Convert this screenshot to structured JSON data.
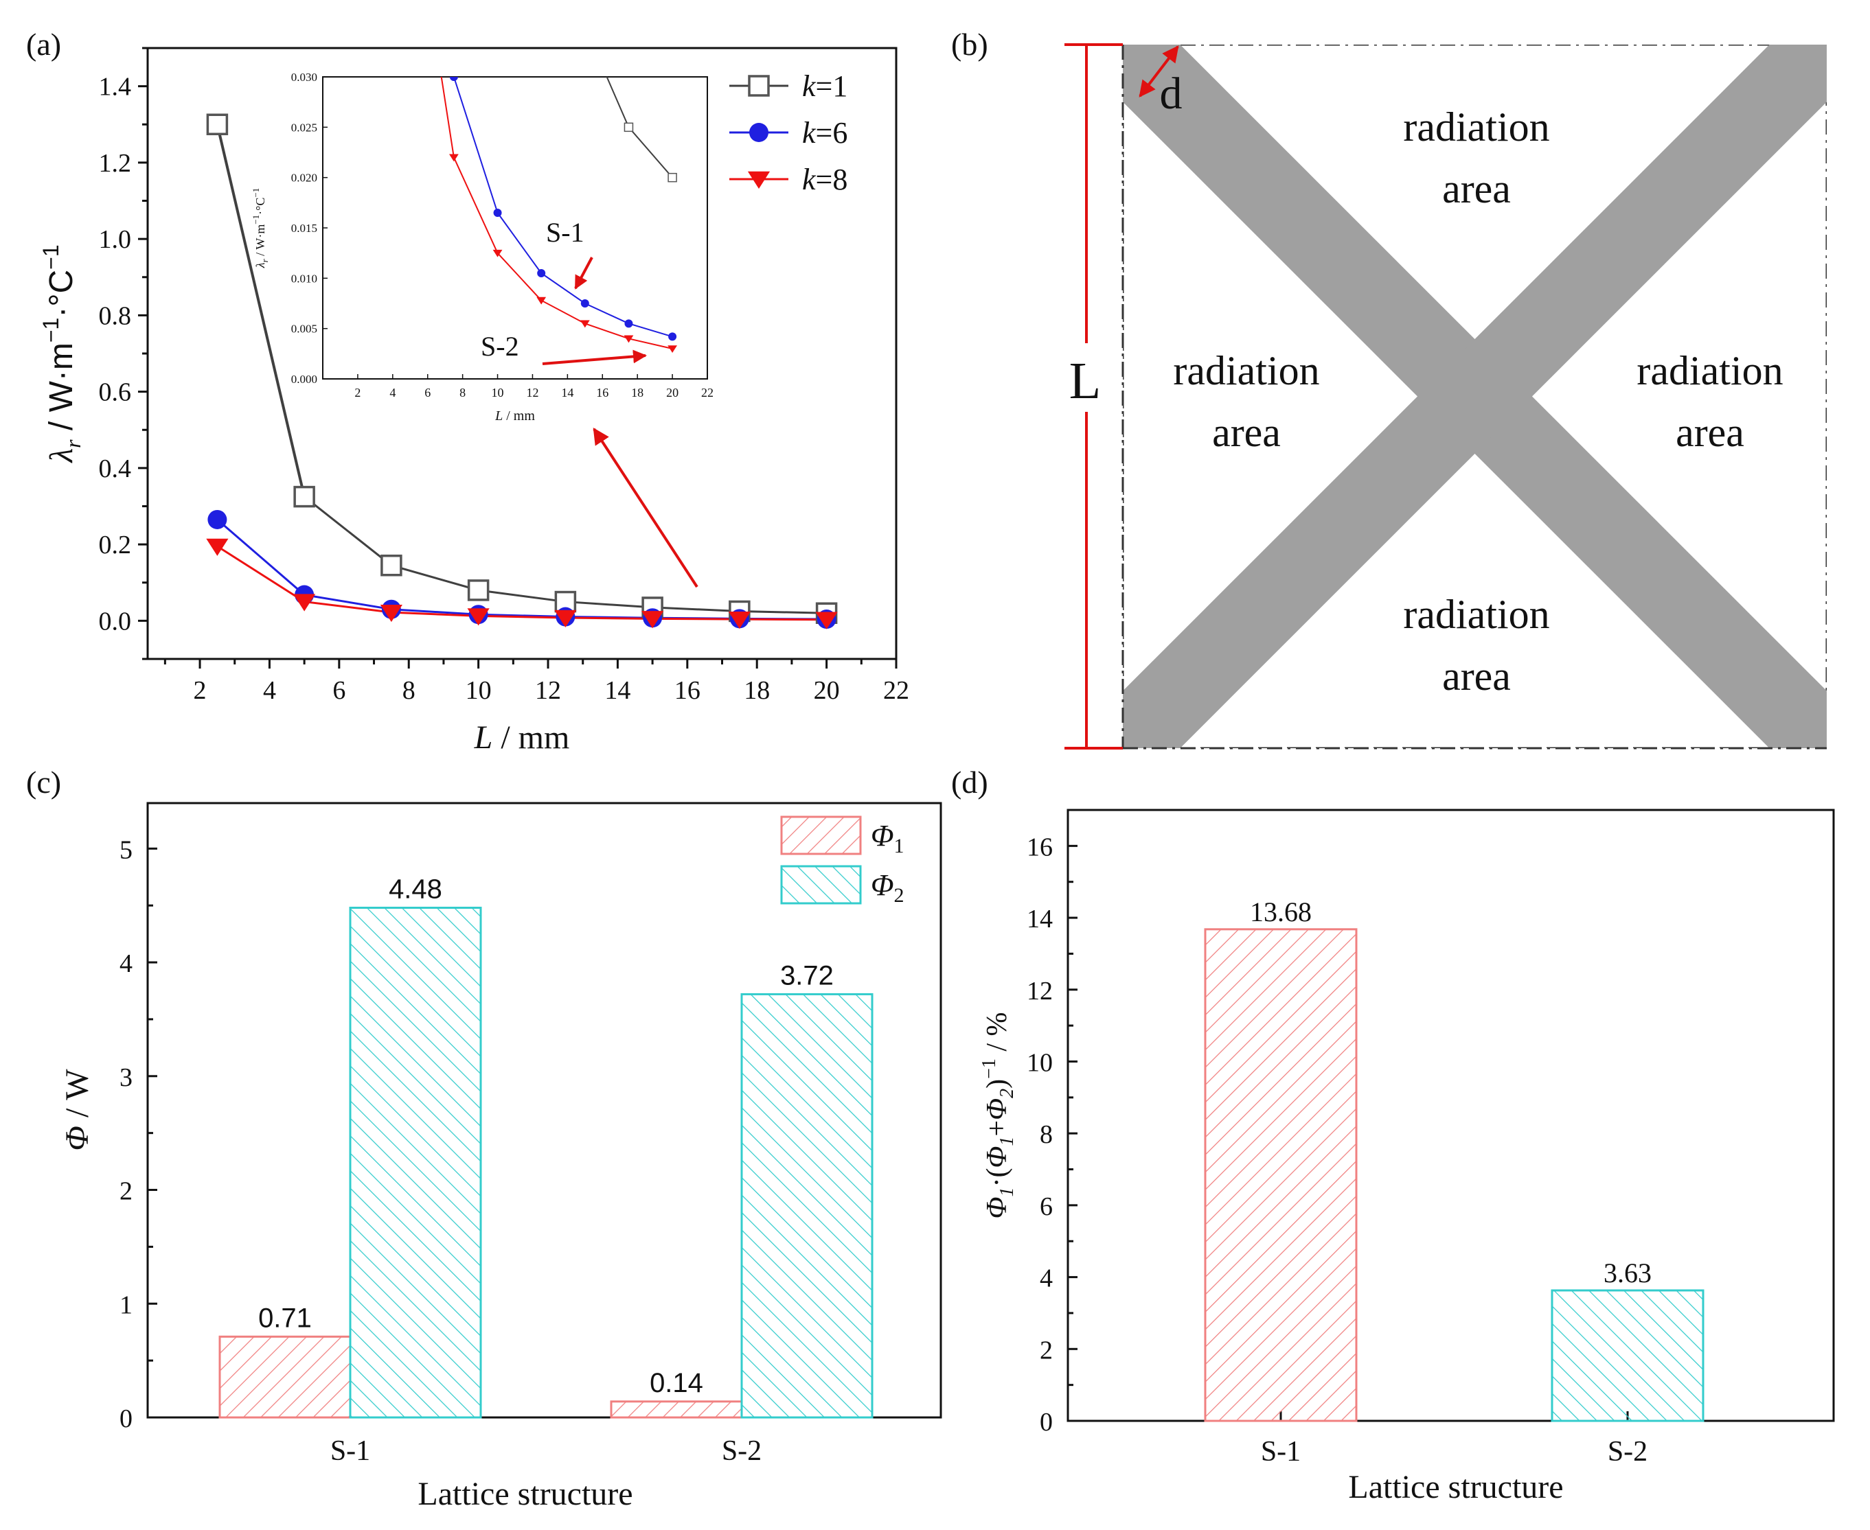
{
  "chart_data": [
    {
      "panel": "(a)",
      "type": "line",
      "xlabel": "L / mm",
      "ylabel": "λr / W·m−1·°C−1",
      "xlim": [
        0.5,
        22
      ],
      "ylim": [
        -0.1,
        1.5
      ],
      "xticks": [
        2,
        4,
        6,
        8,
        10,
        12,
        14,
        16,
        18,
        20,
        22
      ],
      "yticks": [
        0.0,
        0.2,
        0.4,
        0.6,
        0.8,
        1.0,
        1.2,
        1.4
      ],
      "ytick_labels": [
        "0.0",
        "0.2",
        "0.4",
        "0.6",
        "0.8",
        "1.0",
        "1.2",
        "1.4"
      ],
      "x": [
        2.5,
        5,
        7.5,
        10,
        12.5,
        15,
        17.5,
        20
      ],
      "series": [
        {
          "name": "k=1",
          "color": "#404040",
          "marker": "open-square",
          "values": [
            1.3,
            0.325,
            0.145,
            0.08,
            0.05,
            0.035,
            0.025,
            0.02
          ]
        },
        {
          "name": "k=6",
          "color": "#1f1fe0",
          "marker": "filled-circle",
          "values": [
            0.265,
            0.068,
            0.03,
            0.0165,
            0.0105,
            0.0075,
            0.0055,
            0.0042
          ]
        },
        {
          "name": "k=8",
          "color": "#ee1111",
          "marker": "filled-down-triangle",
          "values": [
            0.195,
            0.05,
            0.022,
            0.0125,
            0.0078,
            0.0055,
            0.004,
            0.003
          ]
        }
      ],
      "legend_position": "top-right",
      "legend": [
        {
          "prefix": "k",
          "suffix": "=1"
        },
        {
          "prefix": "k",
          "suffix": "=6"
        },
        {
          "prefix": "k",
          "suffix": "=8"
        }
      ],
      "inset": {
        "xlabel": "L / mm",
        "ylabel": "λr / W·m−1·°C−1",
        "xlim": [
          0,
          22
        ],
        "ylim": [
          0,
          0.03
        ],
        "xticks": [
          2,
          4,
          6,
          8,
          10,
          12,
          14,
          16,
          18,
          20,
          22
        ],
        "yticks": [
          0,
          0.005,
          0.01,
          0.015,
          0.02,
          0.025,
          0.03
        ],
        "ytick_labels": [
          "0.000",
          "0.005",
          "0.010",
          "0.015",
          "0.020",
          "0.025",
          "0.030"
        ],
        "annotations": [
          "S-1",
          "S-2"
        ]
      }
    },
    {
      "panel": "(b)",
      "type": "diagram",
      "labels": [
        "d",
        "L",
        "radiation",
        "area"
      ]
    },
    {
      "panel": "(c)",
      "type": "bar",
      "xlabel": "Lattice structure",
      "ylabel": "Φ / W",
      "categories": [
        "S-1",
        "S-2"
      ],
      "ylim": [
        0,
        5.4
      ],
      "yticks": [
        0,
        1,
        2,
        3,
        4,
        5
      ],
      "series": [
        {
          "name": "Φ1",
          "base": "Φ",
          "sub": "1",
          "color": "#f08080",
          "values": [
            0.71,
            0.14
          ],
          "labels": [
            "0.71",
            "0.14"
          ]
        },
        {
          "name": "Φ2",
          "base": "Φ",
          "sub": "2",
          "color": "#33cccc",
          "values": [
            4.48,
            3.72
          ],
          "labels": [
            "4.48",
            "3.72"
          ]
        }
      ],
      "legend_position": "top-right"
    },
    {
      "panel": "(d)",
      "type": "bar",
      "xlabel": "Lattice structure",
      "ylabel": "Φ1·(Φ1+Φ2)−1 / %",
      "categories": [
        "S-1",
        "S-2"
      ],
      "ylim": [
        0,
        17
      ],
      "yticks": [
        0,
        2,
        4,
        6,
        8,
        10,
        12,
        14,
        16
      ],
      "values": [
        13.68,
        3.63
      ],
      "labels": [
        "13.68",
        "3.63"
      ],
      "colors": [
        "#f08080",
        "#33cccc"
      ]
    }
  ]
}
